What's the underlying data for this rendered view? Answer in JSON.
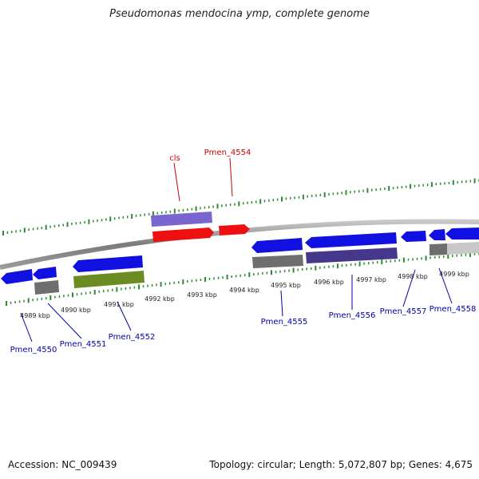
{
  "title": "Pseudomonas mendocina ymp, complete genome",
  "footer": {
    "accession": "Accession: NC_009439",
    "topology": "Topology: circular; Length: 5,072,807 bp; Genes: 4,675"
  },
  "colors": {
    "backbone": "#8a8a8a",
    "ticks": "#2e8b2e",
    "cds_blue": "#1010e0",
    "cds_red": "#ee1010",
    "cds_lavender": "#7a66d0",
    "cds_navy": "#45388a",
    "cds_olive": "#6b8c22",
    "cds_gray": "#6e6e6e",
    "cds_light": "#c8c8c8",
    "label_red": "#cc0000",
    "label_blue": "#0000aa"
  },
  "scale": {
    "unit": "kbp",
    "ticks": [
      {
        "label": "4989 kbp"
      },
      {
        "label": "4990 kbp"
      },
      {
        "label": "4991 kbp"
      },
      {
        "label": "4992 kbp"
      },
      {
        "label": "4993 kbp"
      },
      {
        "label": "4994 kbp"
      },
      {
        "label": "4995 kbp"
      },
      {
        "label": "4996 kbp"
      },
      {
        "label": "4997 kbp"
      },
      {
        "label": "4998 kbp"
      },
      {
        "label": "4999 kbp"
      }
    ]
  },
  "genes": [
    {
      "name": "cls",
      "color": "red"
    },
    {
      "name": "Pmen_4554",
      "color": "red"
    },
    {
      "name": "Pmen_4550",
      "color": "blue"
    },
    {
      "name": "Pmen_4551",
      "color": "blue"
    },
    {
      "name": "Pmen_4552",
      "color": "blue"
    },
    {
      "name": "Pmen_4555",
      "color": "blue"
    },
    {
      "name": "Pmen_4556",
      "color": "blue"
    },
    {
      "name": "Pmen_4557",
      "color": "blue"
    },
    {
      "name": "Pmen_4558",
      "color": "blue"
    }
  ]
}
